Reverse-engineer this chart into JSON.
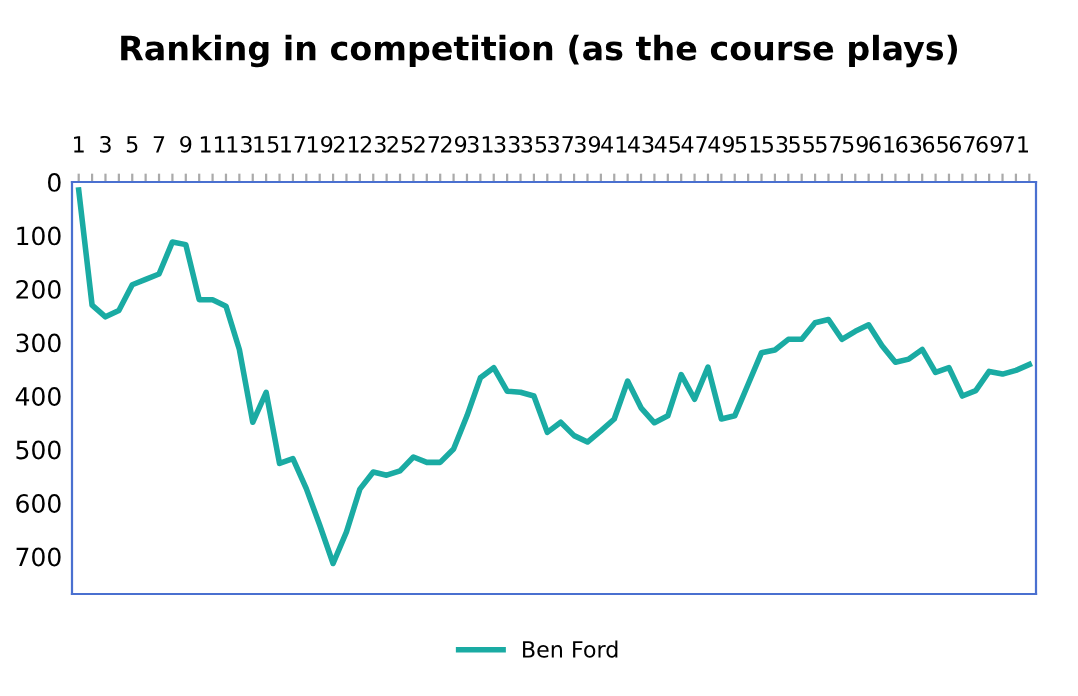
{
  "chart_data": {
    "type": "line",
    "title": "Ranking in competition (as the course plays)",
    "categories": [
      "1",
      null,
      "3",
      null,
      "5",
      null,
      "7",
      null,
      "9",
      null,
      "11",
      null,
      "13",
      null,
      "15",
      null,
      "17",
      null,
      "19",
      null,
      "21",
      null,
      "23",
      null,
      "25",
      null,
      "27",
      null,
      "29",
      null,
      "31",
      null,
      "33",
      null,
      "35",
      null,
      "37",
      null,
      "39",
      null,
      "41",
      null,
      "43",
      null,
      "45",
      null,
      "47",
      null,
      "49",
      null,
      "51",
      null,
      "53",
      null,
      "55",
      null,
      "57",
      null,
      "59",
      null,
      "61",
      null,
      "63",
      null,
      "65",
      null,
      "67",
      null,
      "69",
      null,
      "71",
      null
    ],
    "series": [
      {
        "name": "Ben Ford",
        "color": "#1aaba3",
        "values": [
          15,
          230,
          252,
          240,
          192,
          182,
          172,
          112,
          117,
          220,
          220,
          232,
          313,
          449,
          393,
          526,
          517,
          573,
          641,
          713,
          654,
          574,
          542,
          548,
          540,
          514,
          524,
          524,
          499,
          437,
          366,
          347,
          391,
          393,
          400,
          468,
          449,
          474,
          486,
          465,
          443,
          372,
          422,
          450,
          437,
          360,
          406,
          346,
          443,
          437,
          378,
          319,
          314,
          294,
          294,
          263,
          257,
          294,
          279,
          267,
          306,
          337,
          331,
          313,
          356,
          347,
          400,
          390,
          354,
          359,
          352,
          341
        ]
      }
    ],
    "ylim": [
      770,
      0
    ],
    "yticks": [
      0,
      100,
      200,
      300,
      400,
      500,
      600,
      700
    ],
    "grid": false,
    "legend": "bottom",
    "marker": "none",
    "line_style": "solid"
  }
}
